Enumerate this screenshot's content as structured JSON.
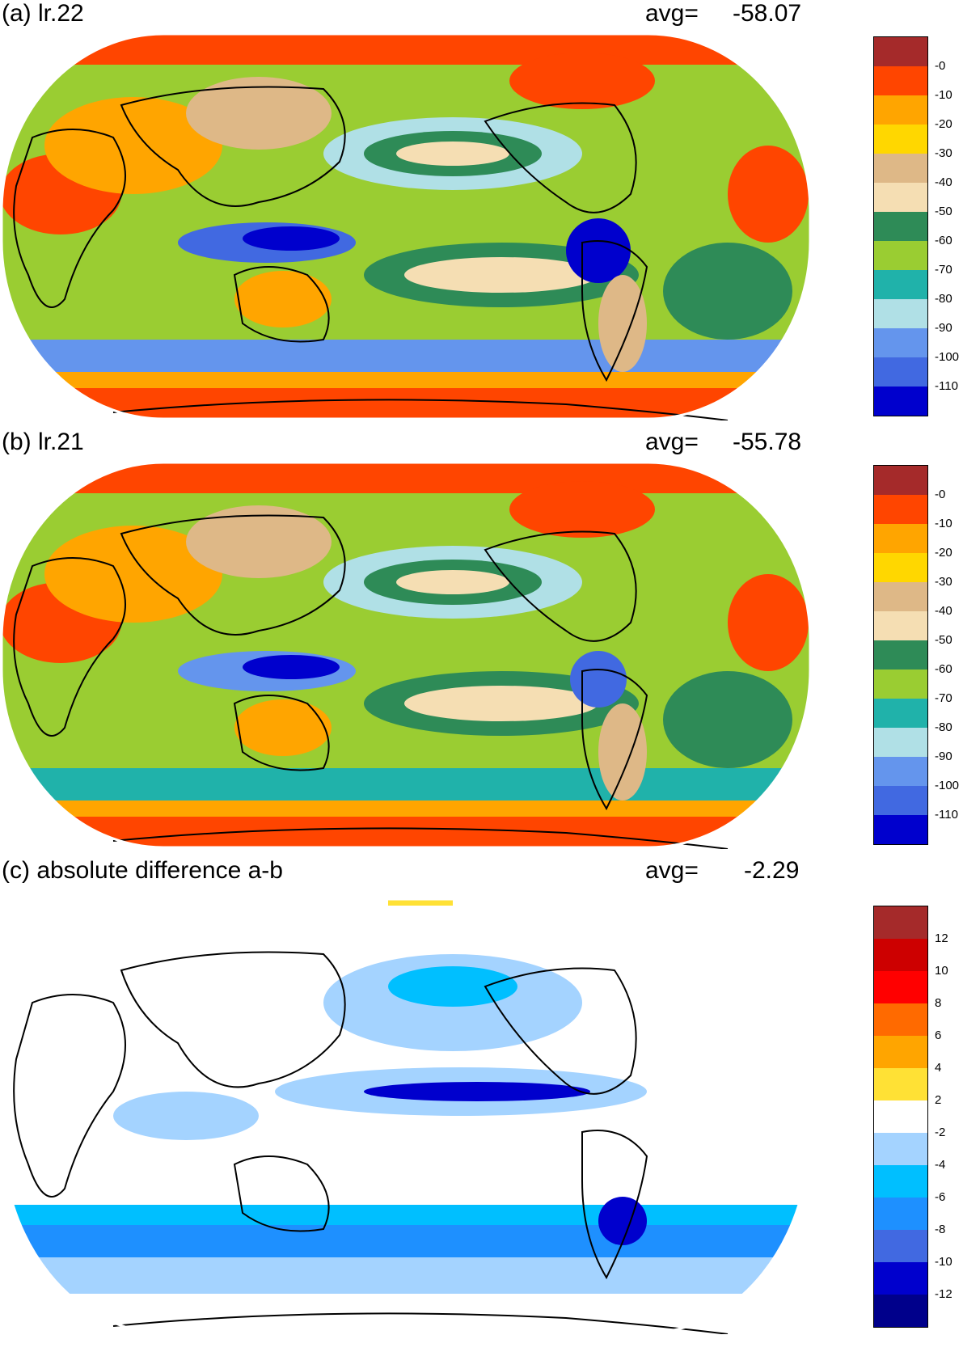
{
  "panels": [
    {
      "label": "(a) lr.22",
      "avg_label": "avg=",
      "avg_value": "-58.07",
      "colorbar": {
        "labels": [
          "-0",
          "-10",
          "-20",
          "-30",
          "-40",
          "-50",
          "-60",
          "-70",
          "-80",
          "-90",
          "-100",
          "-110"
        ],
        "colors": [
          "#a52a2a",
          "#ff4500",
          "#ffa500",
          "#ffd700",
          "#deb887",
          "#f5deb3",
          "#2e8b57",
          "#9acd32",
          "#20b2aa",
          "#b0e0e6",
          "#6495ed",
          "#4169e1",
          "#0000cd"
        ]
      }
    },
    {
      "label": "(b) lr.21",
      "avg_label": "avg=",
      "avg_value": "-55.78",
      "colorbar": {
        "labels": [
          "-0",
          "-10",
          "-20",
          "-30",
          "-40",
          "-50",
          "-60",
          "-70",
          "-80",
          "-90",
          "-100",
          "-110"
        ],
        "colors": [
          "#a52a2a",
          "#ff4500",
          "#ffa500",
          "#ffd700",
          "#deb887",
          "#f5deb3",
          "#2e8b57",
          "#9acd32",
          "#20b2aa",
          "#b0e0e6",
          "#6495ed",
          "#4169e1",
          "#0000cd"
        ]
      }
    },
    {
      "label": "(c) absolute difference a-b",
      "avg_label": "avg=",
      "avg_value": "-2.29",
      "colorbar": {
        "labels": [
          "12",
          "10",
          "8",
          "6",
          "4",
          "2",
          "-2",
          "-4",
          "-6",
          "-8",
          "-10",
          "-12"
        ],
        "colors": [
          "#a52a2a",
          "#cd0000",
          "#ff0000",
          "#ff6a00",
          "#ffa500",
          "#ffe135",
          "#ffffff",
          "#a4d3ff",
          "#00bfff",
          "#1e90ff",
          "#4169e1",
          "#0000cd",
          "#00008b"
        ]
      }
    }
  ]
}
